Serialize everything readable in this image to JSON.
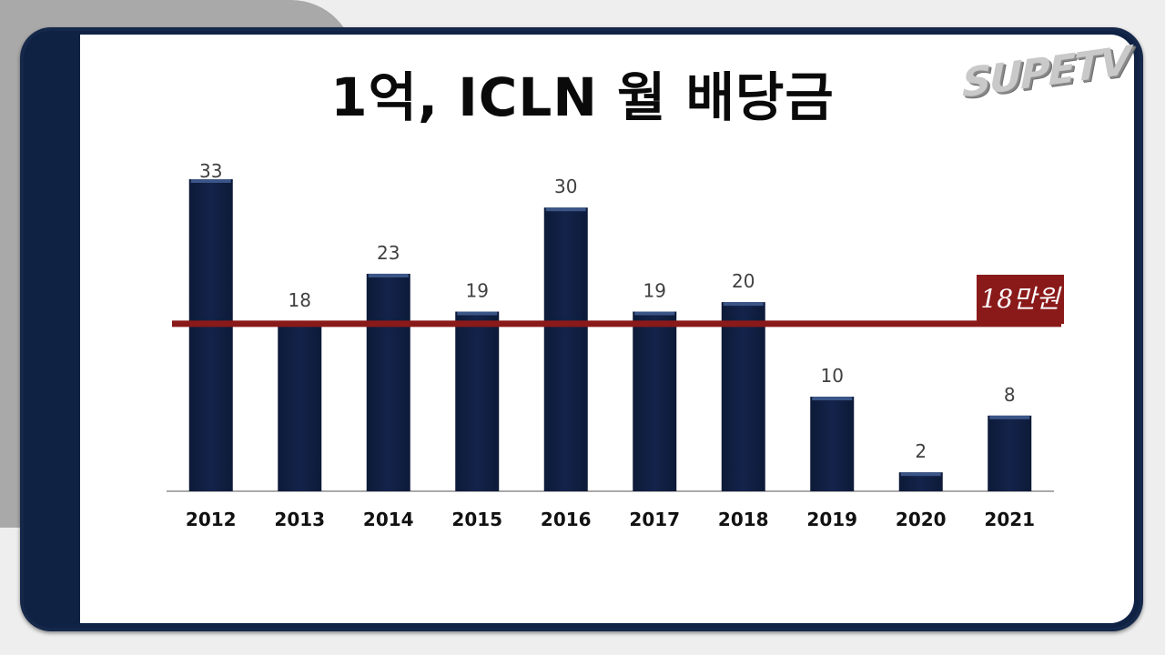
{
  "title": "1억, ICLN 월 배당금",
  "logo": {
    "text": "SUPETV"
  },
  "chart_data": {
    "type": "bar",
    "categories": [
      "2012",
      "2013",
      "2014",
      "2015",
      "2016",
      "2017",
      "2018",
      "2019",
      "2020",
      "2021"
    ],
    "values": [
      33,
      18,
      23,
      19,
      30,
      19,
      20,
      10,
      2,
      8
    ],
    "title": "1억, ICLN 월 배당금",
    "xlabel": "",
    "ylabel": "",
    "ylim": [
      0,
      35
    ],
    "grid": false,
    "bar_color": "#13234a",
    "reference_line": {
      "value": 18,
      "label": "18만원",
      "color": "#8a1a1a"
    }
  },
  "colors": {
    "frame": "#15284a",
    "bar": "#13234a",
    "reference": "#8a1a1a"
  }
}
